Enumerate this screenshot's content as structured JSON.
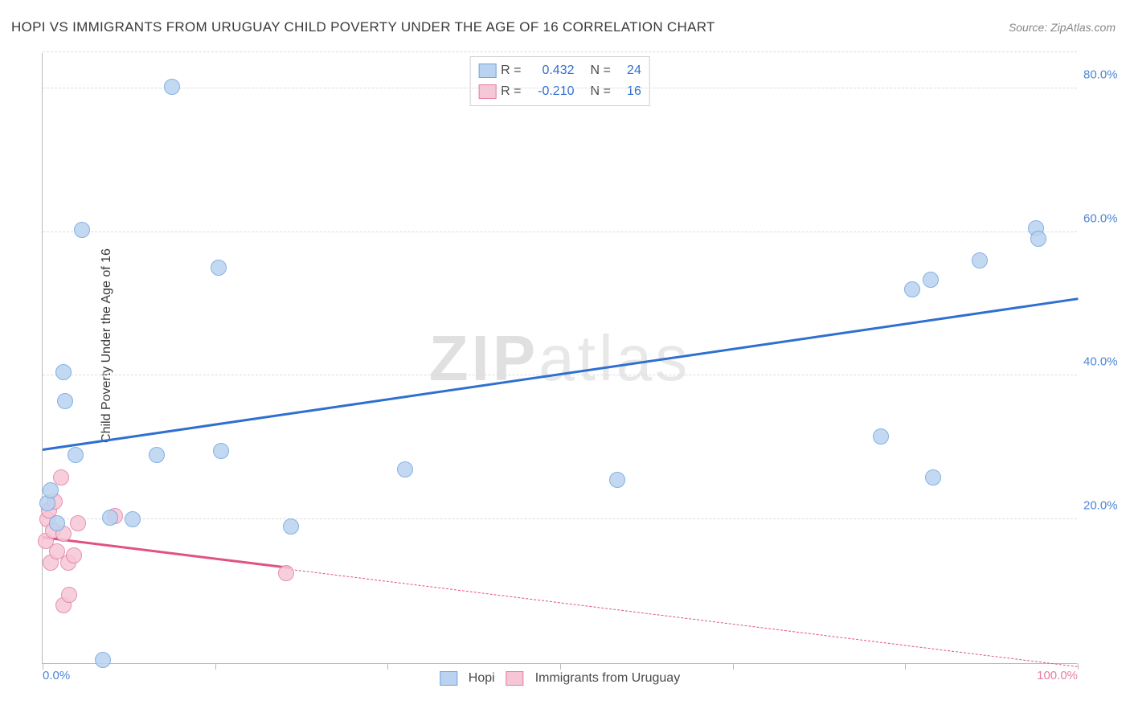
{
  "title": "HOPI VS IMMIGRANTS FROM URUGUAY CHILD POVERTY UNDER THE AGE OF 16 CORRELATION CHART",
  "source_label": "Source: ZipAtlas.com",
  "watermark": {
    "bold": "ZIP",
    "rest": "atlas"
  },
  "ylabel": "Child Poverty Under the Age of 16",
  "chart": {
    "type": "scatter-with-regression",
    "background_color": "#ffffff",
    "grid_color": "#dcdcdc",
    "axis_color": "#b9b9b9",
    "xlim": [
      0,
      100
    ],
    "ylim": [
      0,
      85
    ],
    "xtick_positions": [
      0,
      16.67,
      33.33,
      50,
      66.67,
      83.33,
      100
    ],
    "x_axis_labels": [
      {
        "pos": 0,
        "text": "0.0%",
        "color": "#4b86d6"
      },
      {
        "pos": 100,
        "text": "100.0%",
        "color": "#e37fa2"
      }
    ],
    "y_gridlines": [
      20,
      40,
      60,
      80,
      85
    ],
    "y_axis_labels": [
      {
        "pos": 20,
        "text": "20.0%",
        "color": "#4b86d6"
      },
      {
        "pos": 40,
        "text": "40.0%",
        "color": "#4b86d6"
      },
      {
        "pos": 60,
        "text": "60.0%",
        "color": "#4b86d6"
      },
      {
        "pos": 80,
        "text": "80.0%",
        "color": "#4b86d6"
      }
    ],
    "series": [
      {
        "id": "hopi",
        "label": "Hopi",
        "R": "0.432",
        "N": "24",
        "marker_fill": "#b9d3f0",
        "marker_stroke": "#6fa4df",
        "marker_radius": 10,
        "line_color": "#2f6fd0",
        "trend": {
          "x1": 0,
          "y1": 29.5,
          "x2": 100,
          "y2": 50.5,
          "solid_until_x": 100
        },
        "points": [
          {
            "x": 0.5,
            "y": 22.3
          },
          {
            "x": 0.8,
            "y": 24.0
          },
          {
            "x": 1.4,
            "y": 19.5
          },
          {
            "x": 2.0,
            "y": 40.5
          },
          {
            "x": 2.2,
            "y": 36.5
          },
          {
            "x": 3.2,
            "y": 29.0
          },
          {
            "x": 3.8,
            "y": 60.3
          },
          {
            "x": 5.8,
            "y": 0.5
          },
          {
            "x": 6.5,
            "y": 20.2
          },
          {
            "x": 8.7,
            "y": 20.0
          },
          {
            "x": 11.0,
            "y": 29.0
          },
          {
            "x": 12.5,
            "y": 80.2
          },
          {
            "x": 17.0,
            "y": 55.0
          },
          {
            "x": 17.2,
            "y": 29.5
          },
          {
            "x": 24.0,
            "y": 19.0
          },
          {
            "x": 35.0,
            "y": 27.0
          },
          {
            "x": 55.5,
            "y": 25.5
          },
          {
            "x": 81.0,
            "y": 31.5
          },
          {
            "x": 84.0,
            "y": 52.0
          },
          {
            "x": 85.8,
            "y": 53.3
          },
          {
            "x": 86.0,
            "y": 25.8
          },
          {
            "x": 90.5,
            "y": 56.0
          },
          {
            "x": 96.0,
            "y": 60.5
          },
          {
            "x": 96.2,
            "y": 59.0
          }
        ]
      },
      {
        "id": "uruguay",
        "label": "Immigrants from Uruguay",
        "R": "-0.210",
        "N": "16",
        "marker_fill": "#f6c6d6",
        "marker_stroke": "#e37fa2",
        "marker_radius": 10,
        "line_color": "#e2527f",
        "trend": {
          "x1": 0,
          "y1": 17.3,
          "x2": 100,
          "y2": -0.5,
          "solid_until_x": 24
        },
        "points": [
          {
            "x": 0.3,
            "y": 17.0
          },
          {
            "x": 0.5,
            "y": 20.0
          },
          {
            "x": 0.6,
            "y": 21.3
          },
          {
            "x": 0.8,
            "y": 14.0
          },
          {
            "x": 1.0,
            "y": 18.5
          },
          {
            "x": 1.2,
            "y": 22.5
          },
          {
            "x": 1.4,
            "y": 15.5
          },
          {
            "x": 1.8,
            "y": 25.8
          },
          {
            "x": 2.0,
            "y": 18.0
          },
          {
            "x": 2.0,
            "y": 8.0
          },
          {
            "x": 2.5,
            "y": 14.0
          },
          {
            "x": 2.6,
            "y": 9.5
          },
          {
            "x": 3.0,
            "y": 15.0
          },
          {
            "x": 3.4,
            "y": 19.5
          },
          {
            "x": 7.0,
            "y": 20.5
          },
          {
            "x": 23.5,
            "y": 12.5
          }
        ]
      }
    ],
    "legend_top": {
      "R_prefix": "R =",
      "N_prefix": "N ="
    },
    "legend_bottom": {}
  }
}
